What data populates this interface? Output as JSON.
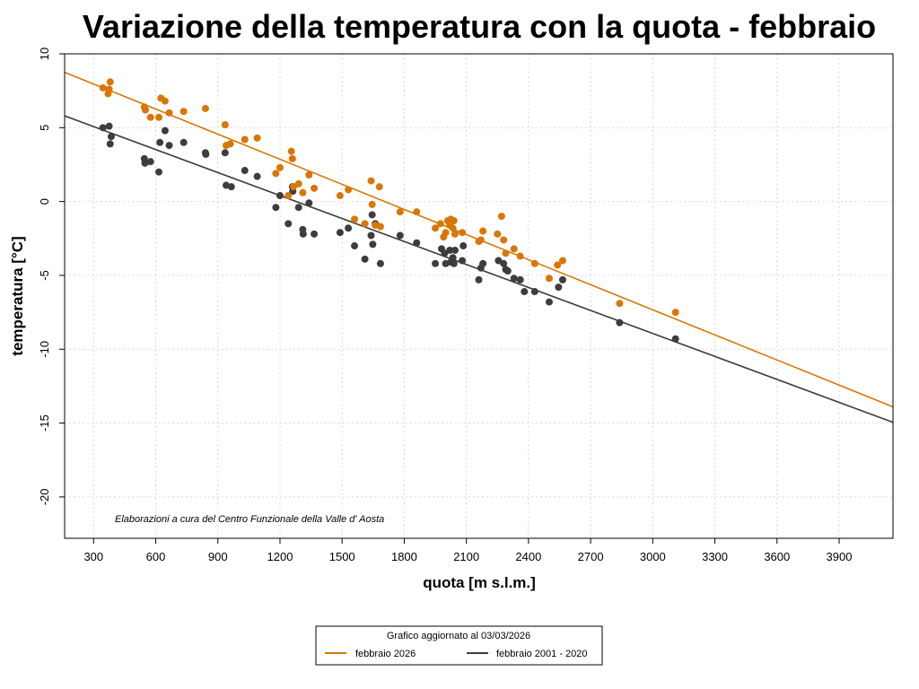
{
  "chart_data": {
    "type": "scatter",
    "title": "Variazione della temperatura con la quota -  febbraio",
    "xlabel": "quota [m s.l.m.]",
    "ylabel": "temperatura [°C]",
    "xlim": [
      160,
      4160
    ],
    "ylim": [
      -22.8,
      10
    ],
    "xticks": [
      300,
      600,
      900,
      1200,
      1500,
      1800,
      2100,
      2400,
      2700,
      3000,
      3300,
      3600,
      3900
    ],
    "yticks": [
      -20,
      -15,
      -10,
      -5,
      0,
      5,
      10
    ],
    "grid": true,
    "credit": "Elaborazioni a cura del Centro Funzionale della Valle d' Aosta",
    "legend": {
      "position": "bottom-center",
      "title": "Grafico aggiornato al 03/03/2026",
      "entries": [
        "febbraio 2026",
        "febbraio 2001 - 2020"
      ]
    },
    "colors": {
      "current": "#d97706",
      "historical": "#3d3d3d"
    },
    "regression_lines": [
      {
        "name": "febbraio 2026",
        "x": [
          160,
          4160
        ],
        "y": [
          8.75,
          -13.9
        ]
      },
      {
        "name": "febbraio 2001 - 2020",
        "x": [
          160,
          4160
        ],
        "y": [
          5.8,
          -14.95
        ]
      }
    ],
    "series": [
      {
        "name": "febbraio 2026",
        "points": [
          [
            345,
            7.7
          ],
          [
            370,
            7.3
          ],
          [
            375,
            7.6
          ],
          [
            380,
            8.1
          ],
          [
            545,
            6.4
          ],
          [
            550,
            6.2
          ],
          [
            575,
            5.7
          ],
          [
            615,
            5.7
          ],
          [
            625,
            7.0
          ],
          [
            645,
            6.8
          ],
          [
            665,
            6.0
          ],
          [
            735,
            6.1
          ],
          [
            840,
            6.3
          ],
          [
            935,
            5.2
          ],
          [
            940,
            3.8
          ],
          [
            960,
            3.9
          ],
          [
            1030,
            4.2
          ],
          [
            1090,
            4.3
          ],
          [
            1180,
            1.9
          ],
          [
            1200,
            2.3
          ],
          [
            1240,
            0.4
          ],
          [
            1255,
            3.4
          ],
          [
            1260,
            2.9
          ],
          [
            1265,
            1.0
          ],
          [
            1290,
            1.2
          ],
          [
            1310,
            0.6
          ],
          [
            1340,
            1.8
          ],
          [
            1365,
            0.9
          ],
          [
            1490,
            0.4
          ],
          [
            1530,
            0.8
          ],
          [
            1560,
            -1.2
          ],
          [
            1610,
            -1.5
          ],
          [
            1640,
            1.4
          ],
          [
            1645,
            -0.2
          ],
          [
            1660,
            -1.6
          ],
          [
            1680,
            1.0
          ],
          [
            1685,
            -1.7
          ],
          [
            1780,
            -0.7
          ],
          [
            1860,
            -0.7
          ],
          [
            1950,
            -1.8
          ],
          [
            1975,
            -1.5
          ],
          [
            1990,
            -2.4
          ],
          [
            2000,
            -2.1
          ],
          [
            2010,
            -1.3
          ],
          [
            2020,
            -1.6
          ],
          [
            2025,
            -1.2
          ],
          [
            2035,
            -1.8
          ],
          [
            2040,
            -1.3
          ],
          [
            2045,
            -2.2
          ],
          [
            2080,
            -2.1
          ],
          [
            2160,
            -2.7
          ],
          [
            2170,
            -2.6
          ],
          [
            2180,
            -2.0
          ],
          [
            2250,
            -2.2
          ],
          [
            2270,
            -1.0
          ],
          [
            2280,
            -2.6
          ],
          [
            2290,
            -3.5
          ],
          [
            2330,
            -3.2
          ],
          [
            2360,
            -3.7
          ],
          [
            2430,
            -4.2
          ],
          [
            2500,
            -5.2
          ],
          [
            2540,
            -4.3
          ],
          [
            2565,
            -4.0
          ],
          [
            2840,
            -6.9
          ],
          [
            3110,
            -7.5
          ]
        ]
      },
      {
        "name": "febbraio 2001 - 2020",
        "points": [
          [
            345,
            5.0
          ],
          [
            375,
            5.1
          ],
          [
            380,
            3.9
          ],
          [
            385,
            4.4
          ],
          [
            545,
            2.9
          ],
          [
            548,
            2.6
          ],
          [
            575,
            2.7
          ],
          [
            620,
            4.0
          ],
          [
            615,
            2.0
          ],
          [
            645,
            4.8
          ],
          [
            665,
            3.8
          ],
          [
            735,
            4.0
          ],
          [
            840,
            3.3
          ],
          [
            842,
            3.2
          ],
          [
            935,
            3.3
          ],
          [
            940,
            1.1
          ],
          [
            965,
            1.0
          ],
          [
            1030,
            2.1
          ],
          [
            1090,
            1.7
          ],
          [
            1180,
            -0.4
          ],
          [
            1200,
            0.4
          ],
          [
            1240,
            -1.5
          ],
          [
            1260,
            1.0
          ],
          [
            1262,
            0.7
          ],
          [
            1290,
            -0.4
          ],
          [
            1310,
            -1.9
          ],
          [
            1312,
            -2.2
          ],
          [
            1340,
            -0.1
          ],
          [
            1365,
            -2.2
          ],
          [
            1490,
            -2.1
          ],
          [
            1530,
            -1.8
          ],
          [
            1560,
            -3.0
          ],
          [
            1610,
            -3.9
          ],
          [
            1640,
            -2.3
          ],
          [
            1645,
            -0.9
          ],
          [
            1648,
            -2.9
          ],
          [
            1660,
            -1.5
          ],
          [
            1685,
            -4.2
          ],
          [
            1780,
            -2.3
          ],
          [
            1860,
            -2.8
          ],
          [
            1950,
            -4.2
          ],
          [
            1980,
            -3.2
          ],
          [
            1995,
            -3.5
          ],
          [
            2000,
            -4.2
          ],
          [
            2020,
            -3.3
          ],
          [
            2025,
            -4.1
          ],
          [
            2035,
            -3.8
          ],
          [
            2040,
            -4.2
          ],
          [
            2045,
            -3.3
          ],
          [
            2080,
            -4.0
          ],
          [
            2085,
            -3.0
          ],
          [
            2160,
            -5.3
          ],
          [
            2170,
            -4.5
          ],
          [
            2180,
            -4.2
          ],
          [
            2255,
            -4.0
          ],
          [
            2280,
            -4.2
          ],
          [
            2290,
            -4.6
          ],
          [
            2300,
            -4.7
          ],
          [
            2330,
            -5.2
          ],
          [
            2360,
            -5.3
          ],
          [
            2380,
            -6.1
          ],
          [
            2430,
            -6.1
          ],
          [
            2500,
            -6.8
          ],
          [
            2545,
            -5.8
          ],
          [
            2565,
            -5.3
          ],
          [
            2840,
            -8.2
          ],
          [
            3110,
            -9.3
          ]
        ]
      }
    ]
  }
}
